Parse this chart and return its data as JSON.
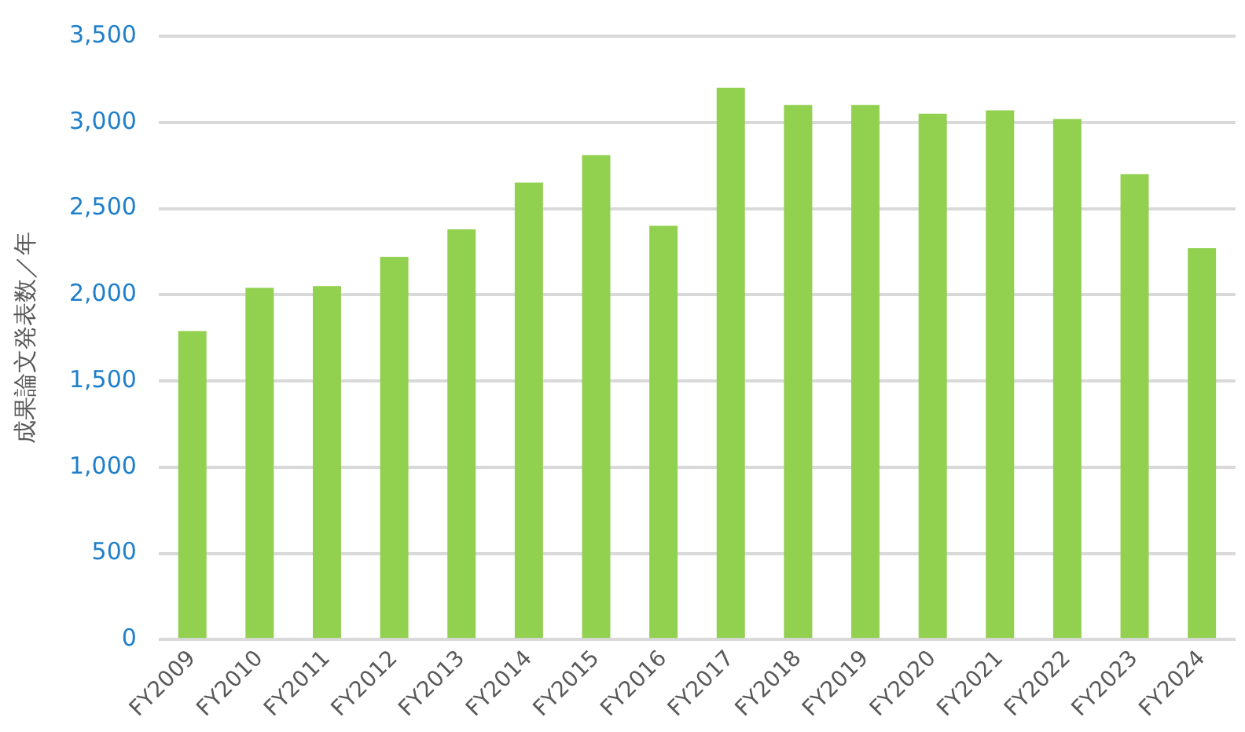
{
  "chart_data": {
    "type": "bar",
    "ylabel": "成果論文発表数／年",
    "categories": [
      "FY2009",
      "FY2010",
      "FY2011",
      "FY2012",
      "FY2013",
      "FY2014",
      "FY2015",
      "FY2016",
      "FY2017",
      "FY2018",
      "FY2019",
      "FY2020",
      "FY2021",
      "FY2022",
      "FY2023",
      "FY2024"
    ],
    "values": [
      1790,
      2040,
      2050,
      2220,
      2380,
      2650,
      2810,
      2400,
      3200,
      3100,
      3100,
      3050,
      3070,
      3020,
      2700,
      2270
    ],
    "color": "#92d050",
    "ylim": [
      0,
      3500
    ],
    "yticks": [
      {
        "value": 0,
        "label": "0"
      },
      {
        "value": 500,
        "label": "500"
      },
      {
        "value": 1000,
        "label": "1,000"
      },
      {
        "value": 1500,
        "label": "1,500"
      },
      {
        "value": 2000,
        "label": "2,000"
      },
      {
        "value": 2500,
        "label": "2,500"
      },
      {
        "value": 3000,
        "label": "3,000"
      },
      {
        "value": 3500,
        "label": "3,500"
      }
    ],
    "grid": "y",
    "legend": false
  }
}
